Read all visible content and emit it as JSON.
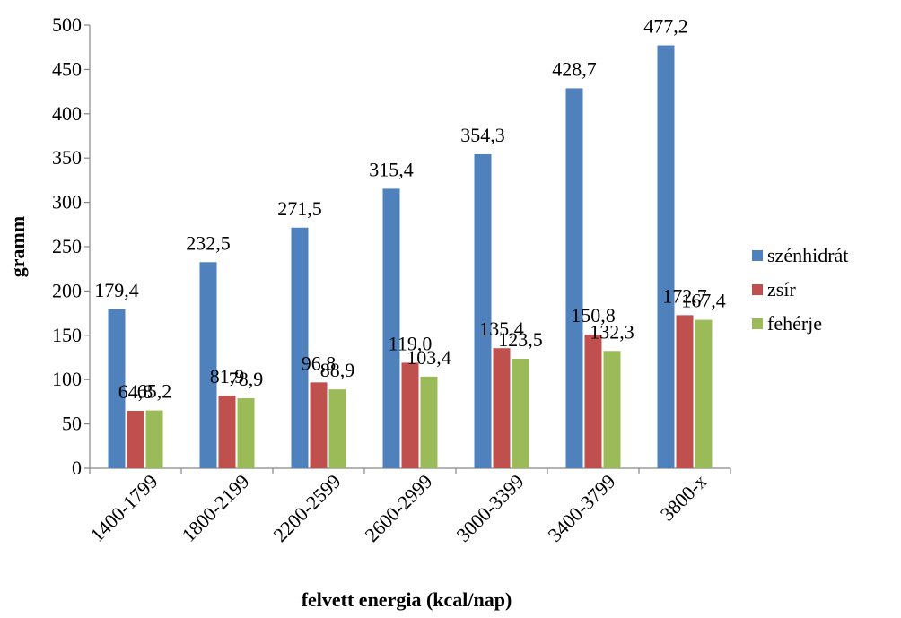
{
  "chart_data": {
    "type": "bar",
    "title": "",
    "xlabel": "felvett energia  (kcal/nap)",
    "ylabel": "gramm",
    "categories": [
      "1400-1799",
      "1800-2199",
      "2200-2599",
      "2600-2999",
      "3000-3399",
      "3400-3799",
      "3800-x"
    ],
    "series": [
      {
        "name": "szénhidrát",
        "color": "#4F81BD",
        "values": [
          179.4,
          232.5,
          271.5,
          315.4,
          354.3,
          428.7,
          477.2
        ],
        "labels": [
          "179,4",
          "232,5",
          "271,5",
          "315,4",
          "354,3",
          "428,7",
          "477,2"
        ]
      },
      {
        "name": "zsír",
        "color": "#C0504D",
        "values": [
          64.8,
          81.9,
          96.8,
          119.0,
          135.4,
          150.8,
          172.7
        ],
        "labels": [
          "64,8",
          "81,9",
          "96,8",
          "119,0",
          "135,4",
          "150,8",
          "172,7"
        ]
      },
      {
        "name": "fehérje",
        "color": "#9BBB59",
        "values": [
          65.2,
          78.9,
          88.9,
          103.4,
          123.5,
          132.3,
          167.4
        ],
        "labels": [
          "65,2",
          "78,9",
          "88,9",
          "103,4",
          "123,5",
          "132,3",
          "167,4"
        ]
      }
    ],
    "ylim": [
      0,
      500
    ],
    "yticks": [
      0,
      50,
      100,
      150,
      200,
      250,
      300,
      350,
      400,
      450,
      500
    ],
    "grid": false,
    "legend_position": "right"
  }
}
